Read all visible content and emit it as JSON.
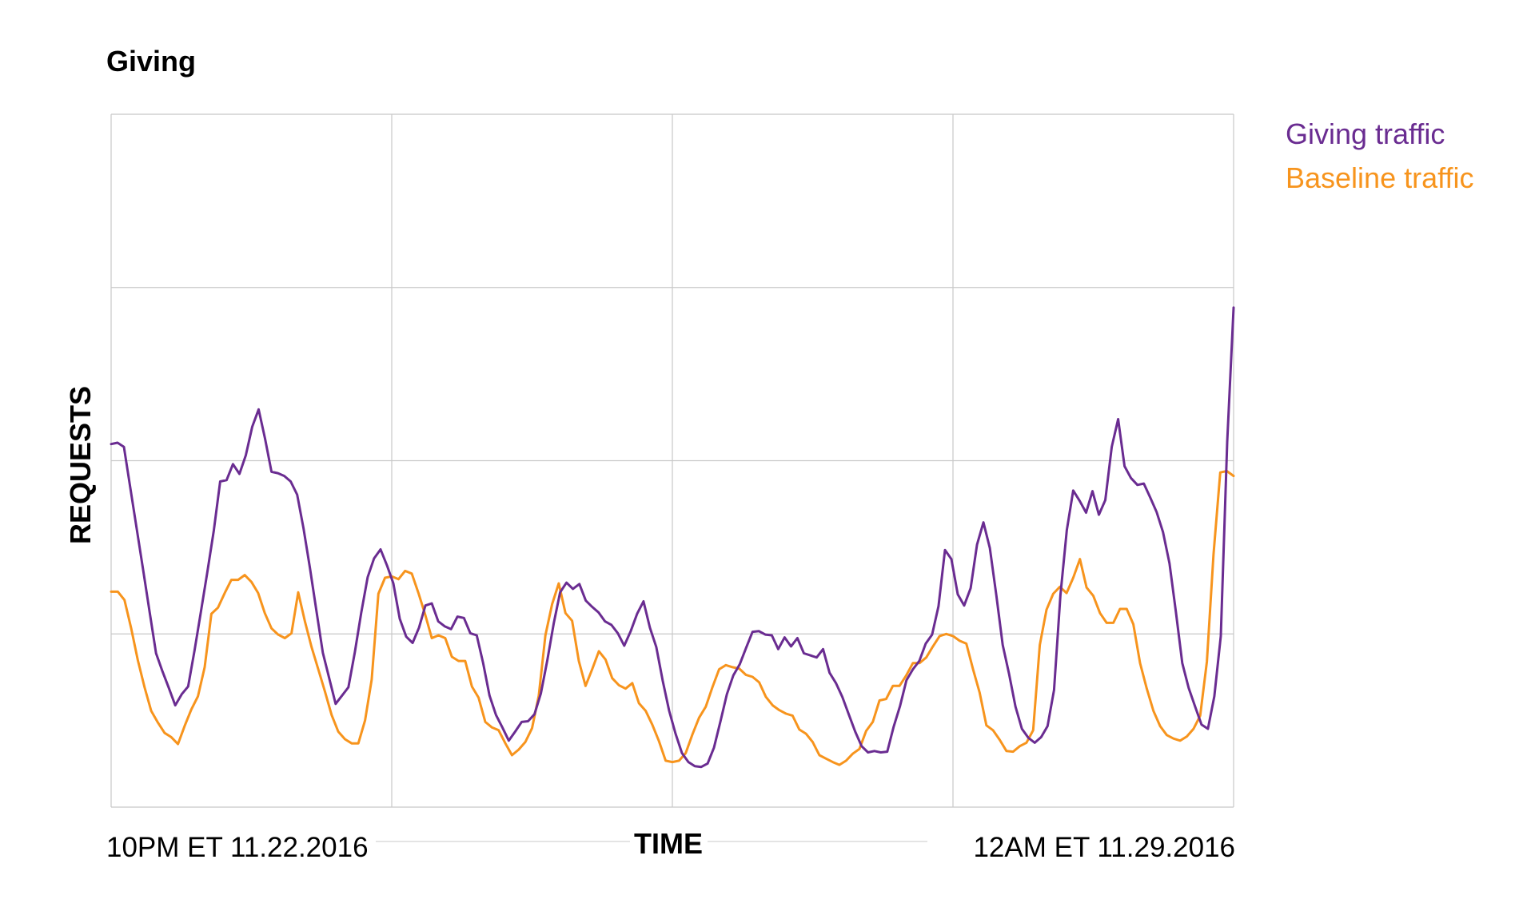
{
  "chart_data": {
    "type": "line",
    "title": "Giving",
    "xlabel": "TIME",
    "ylabel": "REQUESTS",
    "x_tick_labels": [
      "10PM ET 11.22.2016",
      "12AM ET 11.29.2016"
    ],
    "ylim": [
      0,
      100
    ],
    "legend": "top-right",
    "grid": true,
    "colors": {
      "giving": "#6a2c91",
      "baseline": "#f7941d",
      "grid": "#c8c8c8"
    },
    "series": [
      {
        "name": "Giving traffic",
        "values": [
          52.4,
          52.6,
          52,
          46,
          40.1,
          34.2,
          28.2,
          22.2,
          19.6,
          17.2,
          14.7,
          16.3,
          17.4,
          22.6,
          28.2,
          33.9,
          39.9,
          47,
          47.2,
          49.5,
          48.1,
          50.8,
          54.9,
          57.4,
          53.2,
          48.4,
          48.2,
          47.8,
          47,
          45.1,
          40.2,
          34.5,
          28.4,
          22.3,
          18.6,
          14.9,
          16.1,
          17.3,
          22.4,
          28.1,
          33.2,
          35.9,
          37.2,
          34.9,
          32.3,
          27.2,
          24.6,
          23.7,
          25.9,
          29.1,
          29.4,
          26.8,
          26.1,
          25.7,
          27.5,
          27.3,
          25.1,
          24.8,
          20.8,
          16.1,
          13.3,
          11.5,
          9.6,
          10.9,
          12.3,
          12.4,
          13.4,
          16.4,
          21.2,
          26.5,
          31,
          32.4,
          31.5,
          32.2,
          29.8,
          28.9,
          28.1,
          26.8,
          26.3,
          25.1,
          23.3,
          25.4,
          27.9,
          29.7,
          25.9,
          23.1,
          18.2,
          13.9,
          10.6,
          7.8,
          6.5,
          5.9,
          5.8,
          6.3,
          8.6,
          12.4,
          16.3,
          19,
          20.6,
          23,
          25.3,
          25.4,
          24.9,
          24.8,
          22.8,
          24.5,
          23.2,
          24.4,
          22.2,
          21.9,
          21.6,
          22.8,
          19.4,
          17.9,
          15.9,
          13.4,
          10.9,
          8.8,
          7.9,
          8.1,
          7.9,
          8,
          11.6,
          14.6,
          18.3,
          19.9,
          21.1,
          23.6,
          24.9,
          29,
          37.1,
          35.8,
          30.7,
          29.1,
          31.6,
          37.9,
          41.1,
          37.4,
          30.6,
          23.4,
          19.2,
          14.5,
          11.3,
          10,
          9.3,
          10.1,
          11.7,
          16.9,
          30.6,
          40,
          45.7,
          44.2,
          42.5,
          45.6,
          42.2,
          44.3,
          52,
          56,
          49.2,
          47.5,
          46.5,
          46.7,
          44.7,
          42.6,
          39.7,
          35.2,
          28.2,
          20.8,
          17.2,
          14.5,
          11.9,
          11.3,
          16,
          24.7,
          52.7,
          72.1
        ]
      },
      {
        "name": "Baseline traffic",
        "values": [
          31.1,
          31.1,
          29.9,
          25.8,
          21.2,
          17.3,
          13.9,
          12.2,
          10.7,
          10.1,
          9.1,
          11.7,
          14.1,
          16,
          20.2,
          27.9,
          28.8,
          30.9,
          32.8,
          32.8,
          33.5,
          32.5,
          30.9,
          28,
          25.8,
          24.9,
          24.4,
          25.1,
          31,
          26.8,
          23.1,
          19.9,
          16.7,
          13.3,
          10.9,
          9.8,
          9.2,
          9.2,
          12.5,
          18.4,
          30.8,
          33.1,
          33.3,
          32.9,
          34.1,
          33.7,
          30.9,
          27.8,
          24.4,
          24.8,
          24.4,
          21.7,
          21.1,
          21.1,
          17.4,
          15.8,
          12.3,
          11.5,
          11.1,
          9.2,
          7.5,
          8.3,
          9.4,
          11.4,
          16.1,
          24.8,
          29.3,
          32.3,
          28,
          26.9,
          21.1,
          17.5,
          19.9,
          22.5,
          21.3,
          18.6,
          17.6,
          17.1,
          17.9,
          15,
          13.9,
          11.9,
          9.5,
          6.7,
          6.5,
          6.7,
          7.8,
          10.5,
          12.9,
          14.5,
          17.3,
          19.9,
          20.5,
          20.2,
          20,
          19.1,
          18.8,
          18,
          15.9,
          14.7,
          14,
          13.5,
          13.2,
          11.2,
          10.6,
          9.4,
          7.5,
          7,
          6.5,
          6.1,
          6.7,
          7.7,
          8.4,
          11,
          12.3,
          15.4,
          15.6,
          17.5,
          17.5,
          19,
          20.8,
          20.8,
          21.6,
          23.2,
          24.7,
          25,
          24.7,
          24,
          23.6,
          19.9,
          16.5,
          11.8,
          11.1,
          9.7,
          8.1,
          8,
          8.8,
          9.3,
          11.1,
          23.4,
          28.5,
          30.8,
          31.8,
          30.9,
          33.1,
          35.8,
          31.7,
          30.5,
          28,
          26.6,
          26.6,
          28.6,
          28.6,
          26.4,
          20.8,
          17.1,
          13.9,
          11.7,
          10.4,
          9.9,
          9.6,
          10.2,
          11.3,
          13.2,
          21,
          36.5,
          48.3,
          48.5,
          47.8
        ]
      }
    ]
  }
}
